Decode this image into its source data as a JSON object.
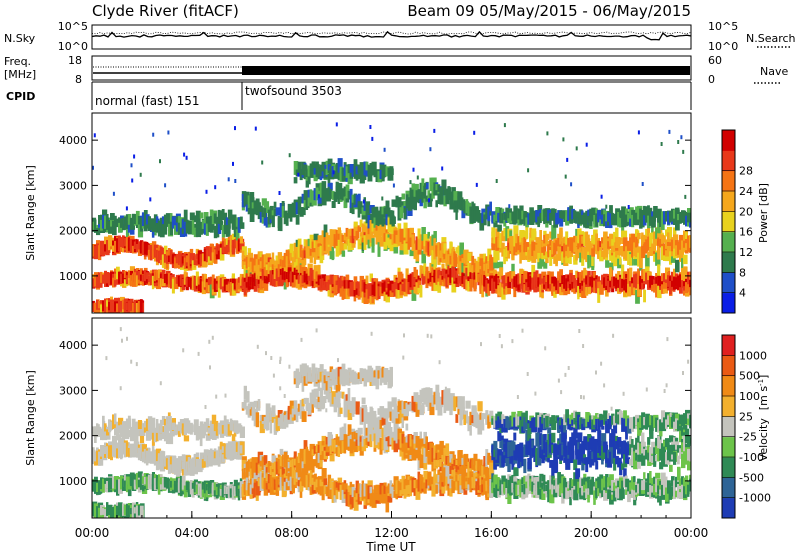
{
  "header": {
    "station": "Clyde River (fitACF)",
    "beam_and_dates": "Beam 09  05/May/2015 - 06/May/2015"
  },
  "chart_data": [
    {
      "type": "line",
      "panel": "noise",
      "left_label": "N.Sky",
      "right_label": "N.Search",
      "left_ticks": [
        "10^5",
        "10^0"
      ],
      "right_ticks": [
        "10^5",
        "10^0"
      ],
      "scale": "log",
      "ylim": [
        1,
        100000
      ]
    },
    {
      "type": "line",
      "panel": "frequency",
      "left_label_line1": "Freq.",
      "left_label_line2": "[MHz]",
      "right_label": "Nave",
      "left_ticks": [
        "18",
        "8"
      ],
      "right_ticks": [
        "60",
        "0"
      ],
      "ylim": [
        8,
        18
      ],
      "nave_lim": [
        0,
        60
      ]
    },
    {
      "type": "table",
      "panel": "cpid",
      "label": "CPID",
      "segments": [
        {
          "name": "normal (fast) 151",
          "start_hour": 0,
          "end_hour": 6
        },
        {
          "name": "twofsound 3503",
          "start_hour": 6,
          "end_hour": 24
        }
      ]
    },
    {
      "type": "heatmap",
      "panel": "power",
      "ylabel": "Slant Range [km]",
      "yticks": [
        1000,
        2000,
        3000,
        4000
      ],
      "ylim": [
        180,
        4600
      ],
      "colorbar_label": "Power [dB]",
      "colorbar_ticks": [
        "4",
        "8",
        "12",
        "16",
        "20",
        "24",
        "28"
      ],
      "colorbar_colors": [
        "#0a1ee6",
        "#1f4fc8",
        "#2e7a4c",
        "#55b04f",
        "#e8d21e",
        "#f5a71c",
        "#f57414",
        "#e8381a",
        "#d10000"
      ],
      "xlim_hours": [
        0,
        24
      ]
    },
    {
      "type": "heatmap",
      "panel": "velocity",
      "ylabel": "Slant Range [km]",
      "yticks": [
        1000,
        2000,
        3000,
        4000
      ],
      "ylim": [
        180,
        4600
      ],
      "colorbar_label": "Velocity",
      "colorbar_unit_pre": "[m s",
      "colorbar_unit_exp": "-1",
      "colorbar_unit_post": "]",
      "colorbar_ticks": [
        "1000",
        "500",
        "100",
        "25",
        "-25",
        "-100",
        "-500",
        "-1000"
      ],
      "colorbar_colors": [
        "#1e3cb4",
        "#2e6496",
        "#2f8a55",
        "#6cc44a",
        "#c4c4bd",
        "#f3b02e",
        "#f08a16",
        "#ea5a14",
        "#e02020"
      ],
      "xticks": [
        "00:00",
        "04:00",
        "08:00",
        "12:00",
        "16:00",
        "20:00",
        "00:00"
      ],
      "xlabel": "Time UT",
      "xlim_hours": [
        0,
        24
      ]
    }
  ]
}
